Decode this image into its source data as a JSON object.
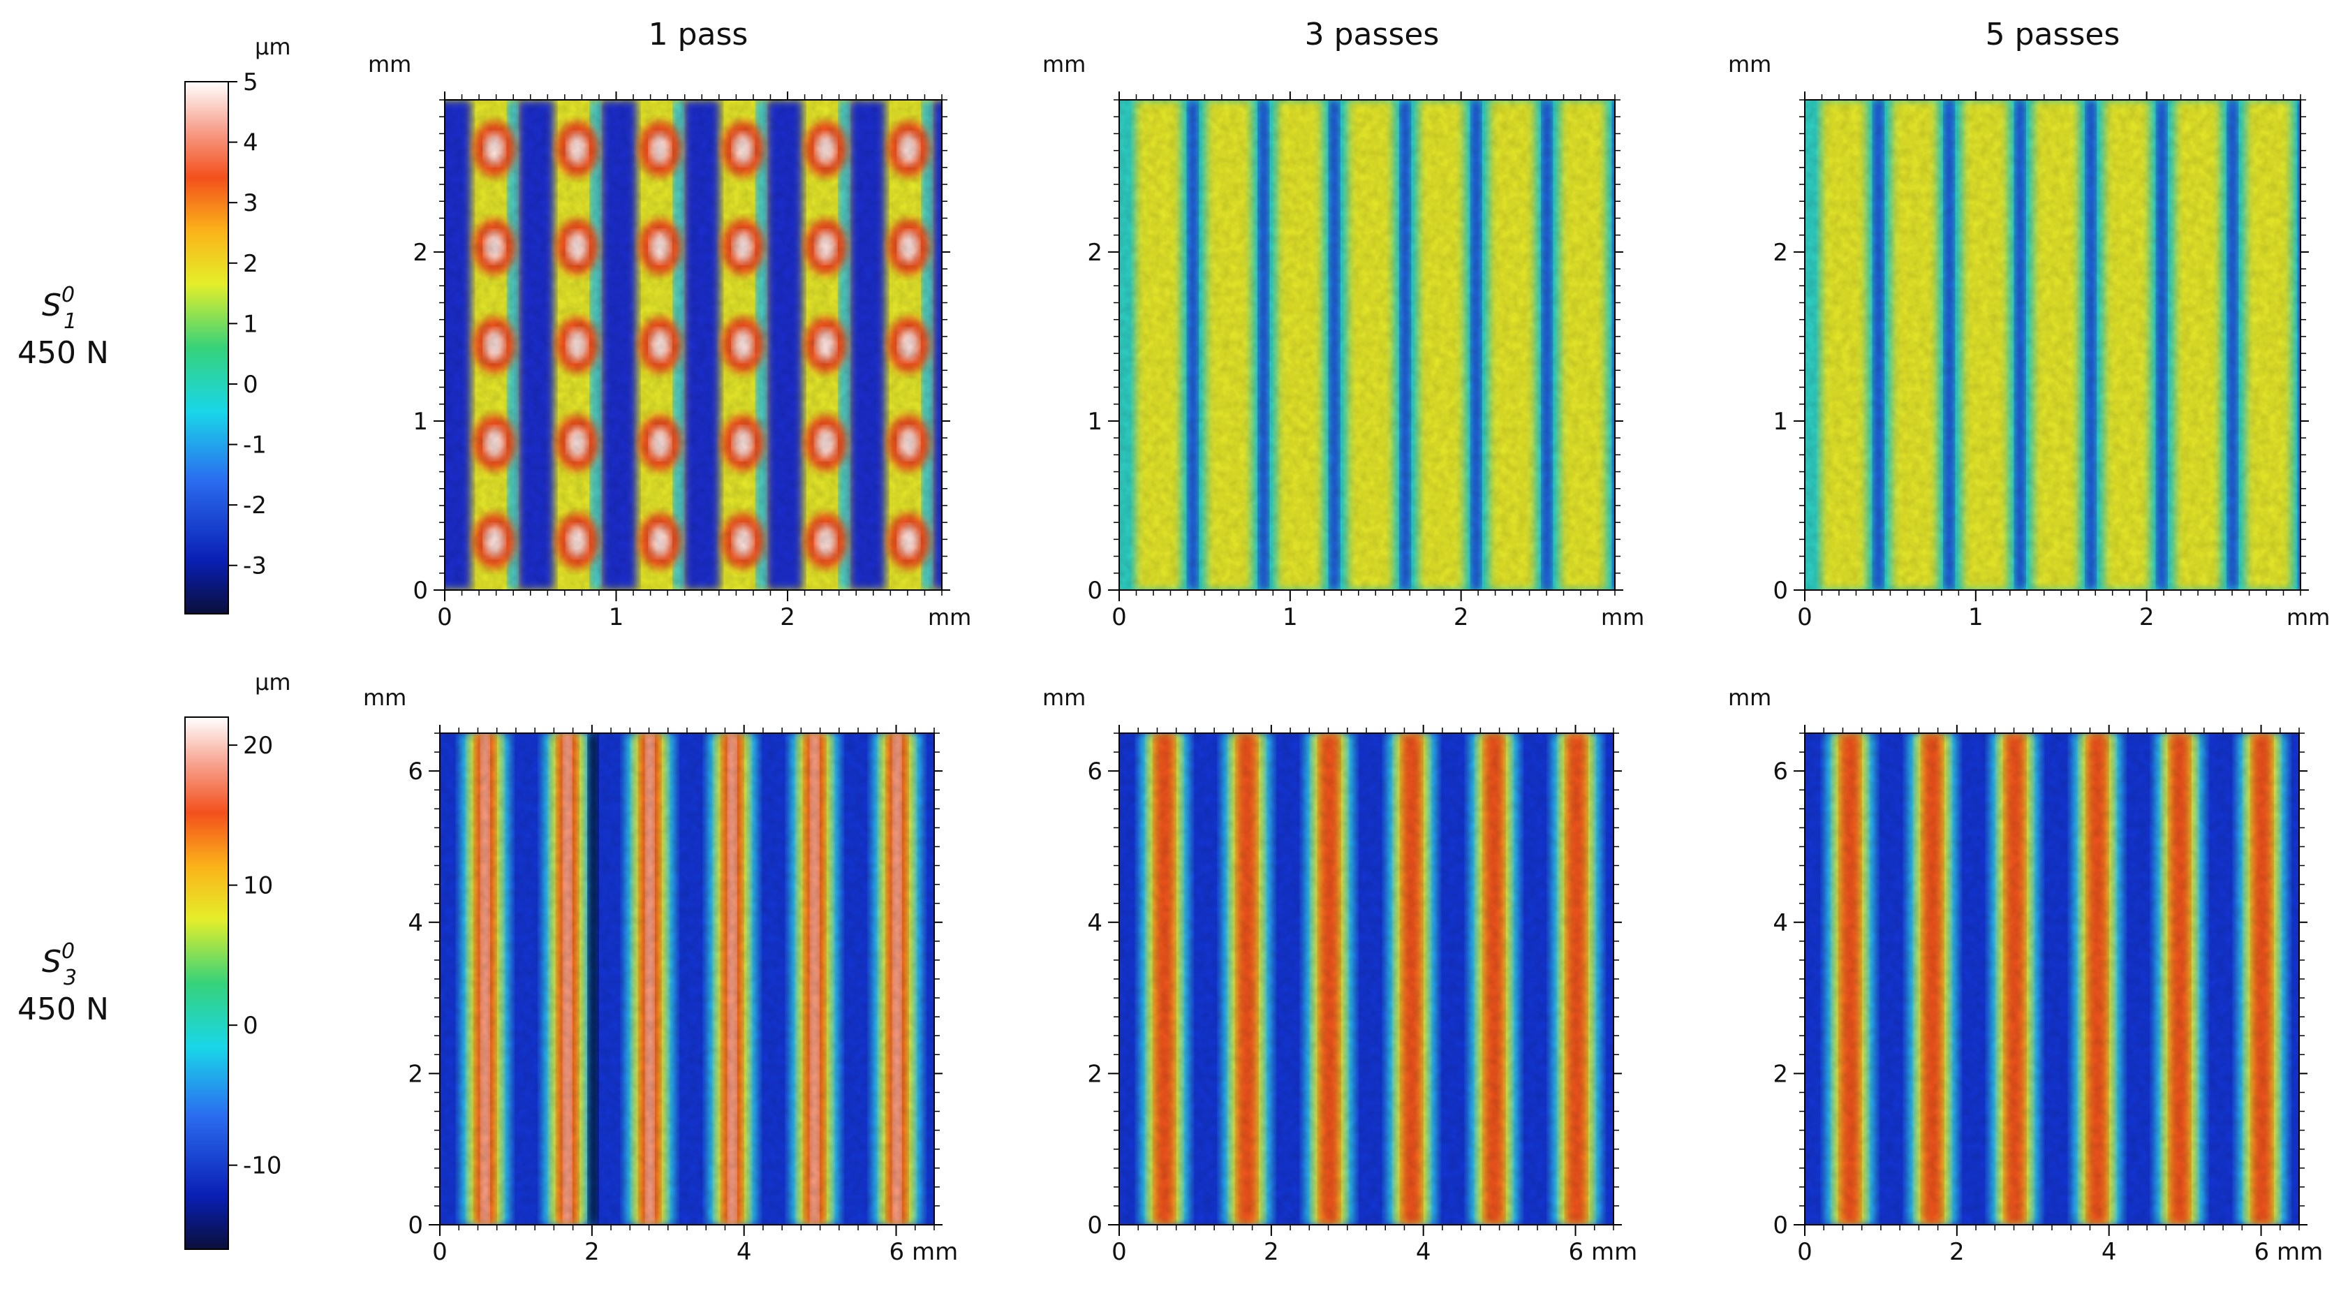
{
  "figure": {
    "column_titles": [
      "1 pass",
      "3 passes",
      "5 passes"
    ],
    "rows": [
      {
        "label_main": "S",
        "label_sup": "0",
        "label_sub": "1",
        "label_load": "450 N",
        "colorbar": {
          "unit": "μm",
          "ticks": [
            "5",
            "4",
            "3",
            "2",
            "1",
            "0",
            "-1",
            "-2",
            "-3"
          ],
          "range": [
            -3.8,
            5.0
          ]
        }
      },
      {
        "label_main": "S",
        "label_sup": "0",
        "label_sub": "3",
        "label_load": "450 N",
        "colorbar": {
          "unit": "μm",
          "ticks": [
            "20",
            "10",
            "0",
            "-10"
          ],
          "range": [
            -16,
            22
          ]
        }
      }
    ]
  },
  "chart_data": [
    {
      "type": "heatmap",
      "title": "1 pass",
      "row": "S01 450 N",
      "xlabel": "mm",
      "ylabel": "mm",
      "colorbar_label": "μm",
      "x_ticks": [
        "0",
        "1",
        "2"
      ],
      "y_ticks": [
        "0",
        "1",
        "2"
      ],
      "x_unit_label": "mm",
      "y_unit_label": "mm",
      "xlim": [
        0,
        2.9
      ],
      "ylim": [
        0,
        2.9
      ],
      "pattern": "dots",
      "stripes": 6,
      "dots_per_column": 5,
      "value_range": [
        -3.5,
        4.5
      ]
    },
    {
      "type": "heatmap",
      "title": "3 passes",
      "row": "S01 450 N",
      "xlabel": "mm",
      "ylabel": "mm",
      "colorbar_label": "μm",
      "x_ticks": [
        "0",
        "1",
        "2"
      ],
      "y_ticks": [
        "0",
        "1",
        "2"
      ],
      "x_unit_label": "mm",
      "y_unit_label": "mm",
      "xlim": [
        0,
        2.9
      ],
      "ylim": [
        0,
        2.9
      ],
      "pattern": "stripes",
      "stripes": 7,
      "value_range": [
        -2.5,
        2.2
      ]
    },
    {
      "type": "heatmap",
      "title": "5 passes",
      "row": "S01 450 N",
      "xlabel": "mm",
      "ylabel": "mm",
      "colorbar_label": "μm",
      "x_ticks": [
        "0",
        "1",
        "2"
      ],
      "y_ticks": [
        "0",
        "1",
        "2"
      ],
      "x_unit_label": "mm",
      "y_unit_label": "mm",
      "xlim": [
        0,
        2.9
      ],
      "ylim": [
        0,
        2.9
      ],
      "pattern": "noisy-stripes",
      "stripes": 7,
      "value_range": [
        -2.5,
        2.0
      ]
    },
    {
      "type": "heatmap",
      "title": "1 pass",
      "row": "S03 450 N",
      "xlabel": "mm",
      "ylabel": "mm",
      "colorbar_label": "μm",
      "x_ticks": [
        "0",
        "2",
        "4",
        "6 mm"
      ],
      "y_ticks": [
        "0",
        "2",
        "4",
        "6"
      ],
      "x_unit_label": "",
      "y_unit_label": "mm",
      "xlim": [
        0,
        6.5
      ],
      "ylim": [
        0,
        6.5
      ],
      "pattern": "stripes",
      "stripes": 6,
      "value_range": [
        -15,
        21
      ]
    },
    {
      "type": "heatmap",
      "title": "3 passes",
      "row": "S03 450 N",
      "xlabel": "mm",
      "ylabel": "mm",
      "colorbar_label": "μm",
      "x_ticks": [
        "0",
        "2",
        "4",
        "6 mm"
      ],
      "y_ticks": [
        "0",
        "2",
        "4",
        "6"
      ],
      "x_unit_label": "",
      "y_unit_label": "mm",
      "xlim": [
        0,
        6.5
      ],
      "ylim": [
        0,
        6.5
      ],
      "pattern": "stripes",
      "stripes": 6,
      "value_range": [
        -14,
        18
      ]
    },
    {
      "type": "heatmap",
      "title": "5 passes",
      "row": "S03 450 N",
      "xlabel": "mm",
      "ylabel": "mm",
      "colorbar_label": "μm",
      "x_ticks": [
        "0",
        "2",
        "4",
        "6 mm"
      ],
      "y_ticks": [
        "0",
        "2",
        "4",
        "6"
      ],
      "x_unit_label": "",
      "y_unit_label": "mm",
      "xlim": [
        0,
        6.5
      ],
      "ylim": [
        0,
        6.5
      ],
      "pattern": "stripes",
      "stripes": 6,
      "value_range": [
        -13,
        17
      ]
    }
  ]
}
